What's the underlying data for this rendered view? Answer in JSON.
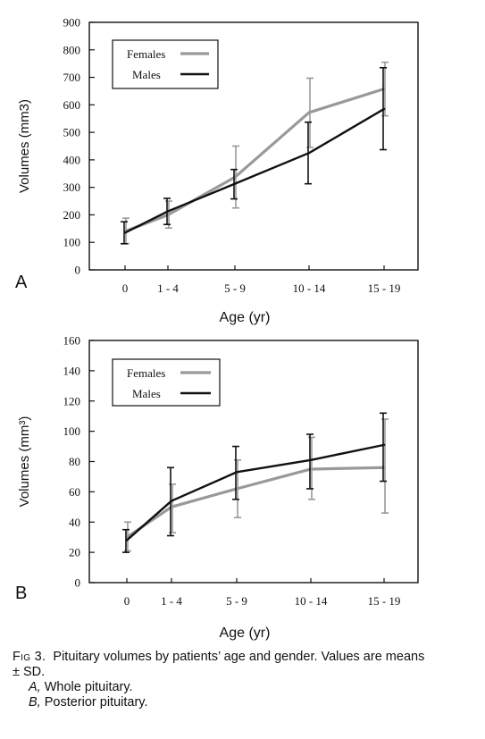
{
  "chart_data": [
    {
      "type": "line",
      "panel_label": "A",
      "xlabel": "Age (yr)",
      "ylabel": "Volumes (mm3)",
      "categories": [
        "0",
        "1 - 4",
        "5 - 9",
        "10 - 14",
        "15 - 19"
      ],
      "ylim": [
        0,
        900
      ],
      "yticks": [
        "0",
        "100",
        "200",
        "300",
        "400",
        "500",
        "600",
        "700",
        "800",
        "900"
      ],
      "legend_position": "top-left",
      "series": [
        {
          "name": "Females",
          "color": "#999999",
          "values": [
            140,
            200,
            337,
            572,
            658
          ],
          "error_low": [
            95,
            152,
            225,
            445,
            560
          ],
          "error_high": [
            188,
            250,
            450,
            697,
            755
          ]
        },
        {
          "name": "Males",
          "color": "#111111",
          "values": [
            135,
            213,
            313,
            425,
            585
          ],
          "error_low": [
            95,
            165,
            258,
            313,
            437
          ],
          "error_high": [
            175,
            260,
            365,
            537,
            735
          ]
        }
      ]
    },
    {
      "type": "line",
      "panel_label": "B",
      "xlabel": "Age (yr)",
      "ylabel": "Volumes (mm³)",
      "categories": [
        "0",
        "1 - 4",
        "5 - 9",
        "10 - 14",
        "15 - 19"
      ],
      "ylim": [
        0,
        160
      ],
      "yticks": [
        "0",
        "20",
        "40",
        "60",
        "80",
        "100",
        "120",
        "140",
        "160"
      ],
      "legend_position": "top-left",
      "series": [
        {
          "name": "Females",
          "color": "#999999",
          "values": [
            30,
            50,
            62,
            75,
            76
          ],
          "error_low": [
            21,
            33,
            43,
            55,
            46
          ],
          "error_high": [
            40,
            65,
            81,
            96,
            108
          ]
        },
        {
          "name": "Males",
          "color": "#111111",
          "values": [
            28,
            54,
            73,
            81,
            91
          ],
          "error_low": [
            20,
            31,
            55,
            62,
            67
          ],
          "error_high": [
            35,
            76,
            90,
            98,
            112
          ]
        }
      ]
    }
  ],
  "caption": {
    "fig_label": "Fig 3.",
    "line1": "Pituitary volumes by patients’ age and gender. Values are means ± SD.",
    "a_label": "A,",
    "a_text": "Whole pituitary.",
    "b_label": "B,",
    "b_text": "Posterior pituitary."
  }
}
